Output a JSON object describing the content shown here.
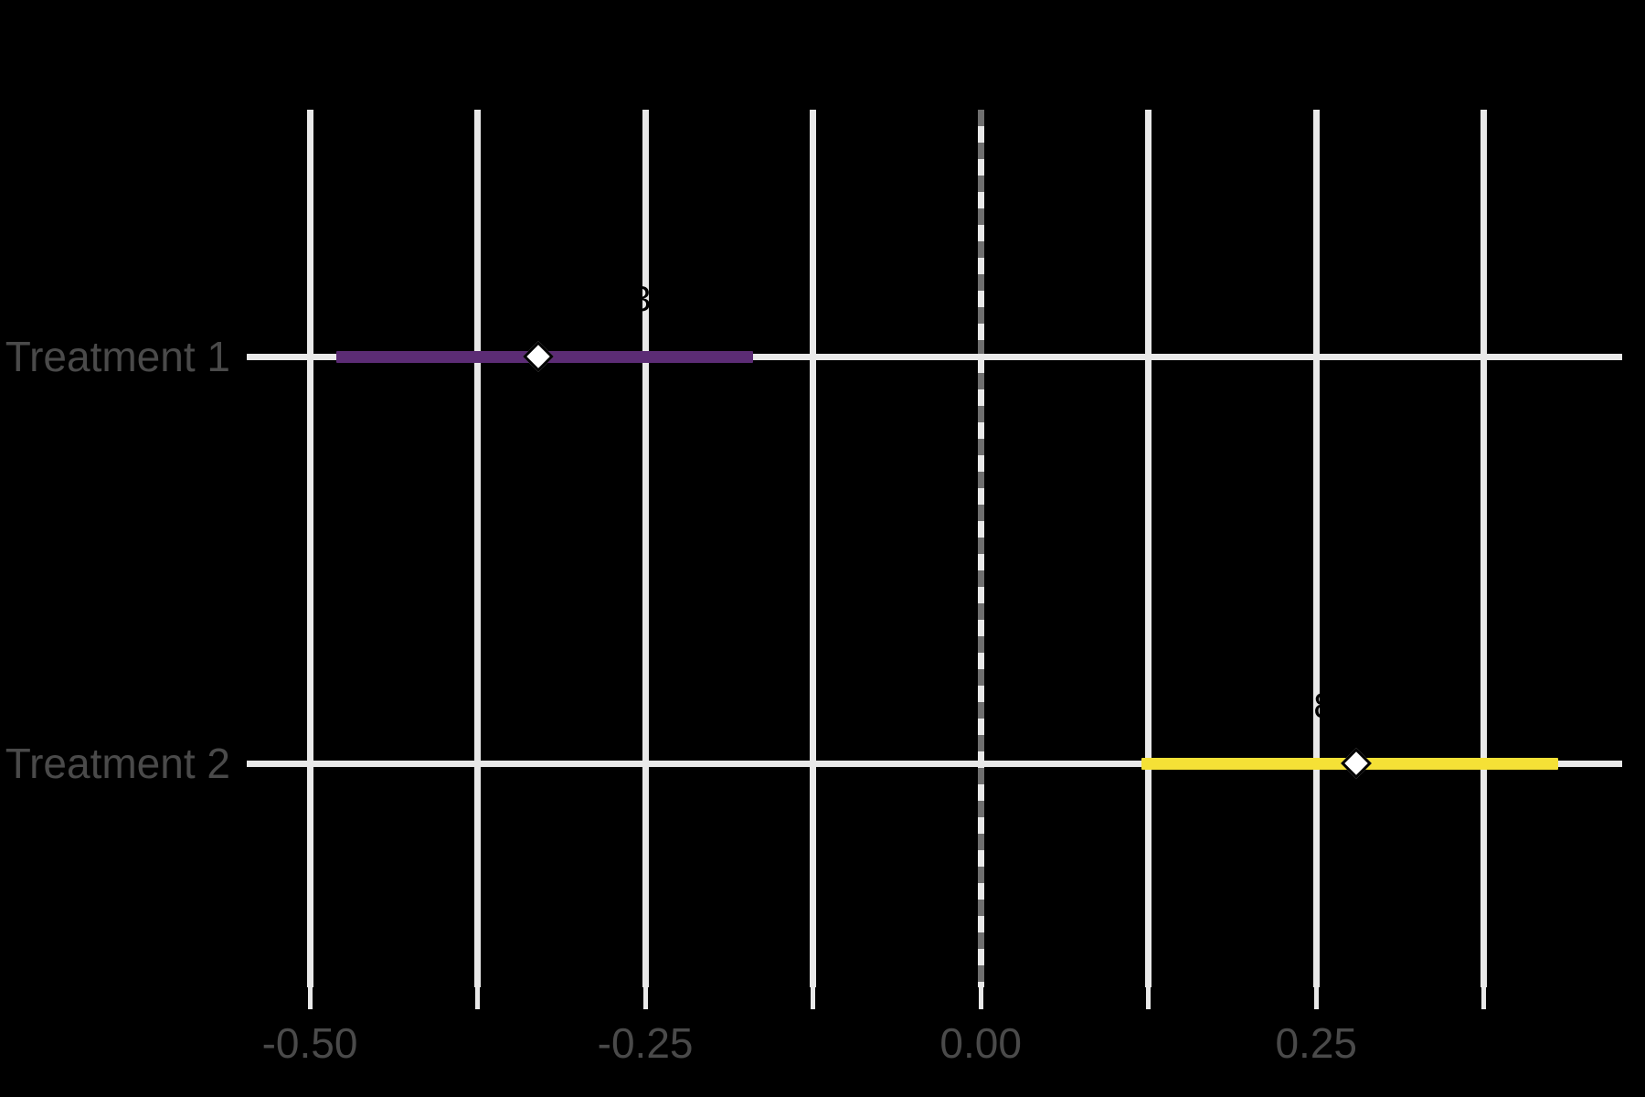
{
  "chart_data": {
    "type": "pointrange",
    "title": "",
    "xlabel": "",
    "ylabel": "",
    "background_color": "#000000",
    "gridline_color": "#e9e9e9",
    "zero_line_dash_color": "#6f6f6f",
    "axis_text_color": "#4a4a4a",
    "diamond_fill": "#ffffff",
    "diamond_border": "#000000",
    "x_axis": {
      "xlim": [
        -0.547,
        0.478
      ],
      "gridline_values": [
        -0.5,
        -0.375,
        -0.25,
        -0.125,
        0,
        0.125,
        0.25,
        0.375
      ],
      "tick_values": [
        -0.5,
        -0.25,
        0,
        0.25
      ],
      "tick_labels": [
        "-0.50",
        "-0.25",
        "0.00",
        "0.25"
      ],
      "minor_step": 0.125,
      "zero_reference_line": 0,
      "grid": true
    },
    "rows": [
      {
        "label": "Treatment 1",
        "estimate": -0.33,
        "ci_low": -0.48,
        "ci_high": -0.17,
        "color": "#5c2c75",
        "value_label": "-0.33",
        "value_label_x": -0.276
      },
      {
        "label": "Treatment 2",
        "estimate": 0.28,
        "ci_low": 0.12,
        "ci_high": 0.43,
        "color": "#f5e136",
        "value_label": "0.28",
        "value_label_x": 0.237
      }
    ],
    "legend": null,
    "notes": "value labels are rendered in black and only visible where they overlap white gridlines"
  }
}
